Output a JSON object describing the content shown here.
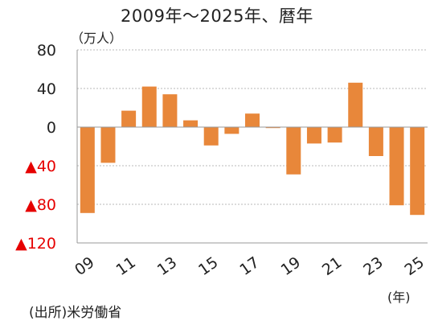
{
  "title": "2009年～2025年、暦年",
  "y_unit": "（万人）",
  "x_unit": "(年)",
  "source": "(出所)米労働省",
  "colors": {
    "bar": "#E8873A",
    "negative_label": "#E60000",
    "grid": "#b8b8b8",
    "axis": "#999999"
  },
  "chart_data": {
    "type": "bar",
    "categories": [
      "09",
      "10",
      "11",
      "12",
      "13",
      "14",
      "15",
      "16",
      "17",
      "18",
      "19",
      "20",
      "21",
      "22",
      "23",
      "24",
      "25"
    ],
    "values": [
      -89,
      -37,
      17,
      42,
      34,
      7,
      -19,
      -7,
      14,
      -1,
      -49,
      -17,
      -16,
      46,
      -30,
      -81,
      -91
    ],
    "ylim": [
      -120,
      80
    ],
    "yticks": [
      {
        "value": 80,
        "label": "80",
        "negative": false
      },
      {
        "value": 40,
        "label": "40",
        "negative": false
      },
      {
        "value": 0,
        "label": "0",
        "negative": false
      },
      {
        "value": -40,
        "label": "▲40",
        "negative": true
      },
      {
        "value": -80,
        "label": "▲80",
        "negative": true
      },
      {
        "value": -120,
        "label": "▲120",
        "negative": true
      }
    ],
    "xtick_labels": [
      "09",
      "11",
      "13",
      "15",
      "17",
      "19",
      "21",
      "23",
      "25"
    ],
    "grid": true
  }
}
